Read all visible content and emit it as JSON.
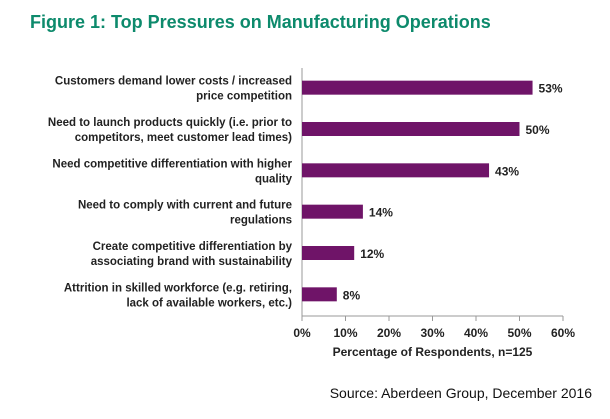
{
  "chart_data": {
    "type": "bar",
    "orientation": "horizontal",
    "title": "Figure 1: Top Pressures on Manufacturing Operations",
    "categories": [
      [
        "Customers demand lower costs / increased",
        "price competition"
      ],
      [
        "Need to launch products quickly (i.e. prior to",
        "competitors, meet customer lead times)"
      ],
      [
        "Need competitive differentiation with higher",
        "quality"
      ],
      [
        "Need to comply with current and future",
        "regulations"
      ],
      [
        "Create competitive differentiation by",
        "associating brand with sustainability"
      ],
      [
        "Attrition in skilled workforce (e.g. retiring,",
        "lack of available workers, etc.)"
      ]
    ],
    "values": [
      53,
      50,
      43,
      14,
      12,
      8
    ],
    "data_labels": [
      "53%",
      "50%",
      "43%",
      "14%",
      "12%",
      "8%"
    ],
    "xlabel": "Percentage of Respondents, n=125",
    "xlim": [
      0,
      60
    ],
    "xticks": [
      "0%",
      "10%",
      "20%",
      "30%",
      "40%",
      "50%",
      "60%"
    ],
    "grid": false,
    "bar_color": "#6f1468"
  },
  "source": "Source: Aberdeen Group, December 2016"
}
